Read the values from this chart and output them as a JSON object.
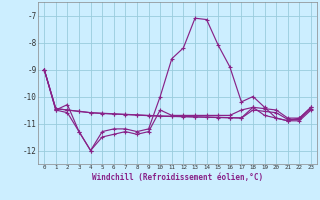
{
  "xlabel": "Windchill (Refroidissement éolien,°C)",
  "bg_color": "#cceeff",
  "grid_color": "#99ccdd",
  "line_color": "#882288",
  "x": [
    0,
    1,
    2,
    3,
    4,
    5,
    6,
    7,
    8,
    9,
    10,
    11,
    12,
    13,
    14,
    15,
    16,
    17,
    18,
    19,
    20,
    21,
    22,
    23
  ],
  "series": [
    [
      -9.0,
      -10.5,
      -10.3,
      -11.3,
      -12.0,
      -11.3,
      -11.2,
      -11.2,
      -11.3,
      -11.2,
      -10.0,
      -8.6,
      -8.2,
      -7.1,
      -7.15,
      -8.1,
      -8.9,
      -10.2,
      -10.0,
      -10.4,
      -10.8,
      -10.9,
      -10.8,
      -10.4
    ],
    [
      -9.0,
      -10.45,
      -10.5,
      -10.55,
      -10.6,
      -10.62,
      -10.64,
      -10.66,
      -10.68,
      -10.7,
      -10.72,
      -10.73,
      -10.74,
      -10.75,
      -10.76,
      -10.77,
      -10.78,
      -10.79,
      -10.4,
      -10.45,
      -10.5,
      -10.8,
      -10.8,
      -10.4
    ],
    [
      -9.0,
      -10.45,
      -10.5,
      -10.55,
      -10.6,
      -10.63,
      -10.65,
      -10.67,
      -10.69,
      -10.71,
      -10.73,
      -10.74,
      -10.75,
      -10.76,
      -10.77,
      -10.78,
      -10.79,
      -10.8,
      -10.5,
      -10.55,
      -10.6,
      -10.85,
      -10.85,
      -10.45
    ],
    [
      -9.0,
      -10.5,
      -10.6,
      -11.3,
      -12.0,
      -11.5,
      -11.4,
      -11.3,
      -11.4,
      -11.3,
      -10.5,
      -10.7,
      -10.7,
      -10.7,
      -10.7,
      -10.7,
      -10.7,
      -10.5,
      -10.4,
      -10.7,
      -10.8,
      -10.9,
      -10.9,
      -10.5
    ]
  ],
  "ylim": [
    -12.5,
    -6.5
  ],
  "yticks": [
    -12,
    -11,
    -10,
    -9,
    -8,
    -7
  ],
  "xlim": [
    -0.5,
    23.5
  ],
  "xticks": [
    0,
    1,
    2,
    3,
    4,
    5,
    6,
    7,
    8,
    9,
    10,
    11,
    12,
    13,
    14,
    15,
    16,
    17,
    18,
    19,
    20,
    21,
    22,
    23
  ]
}
